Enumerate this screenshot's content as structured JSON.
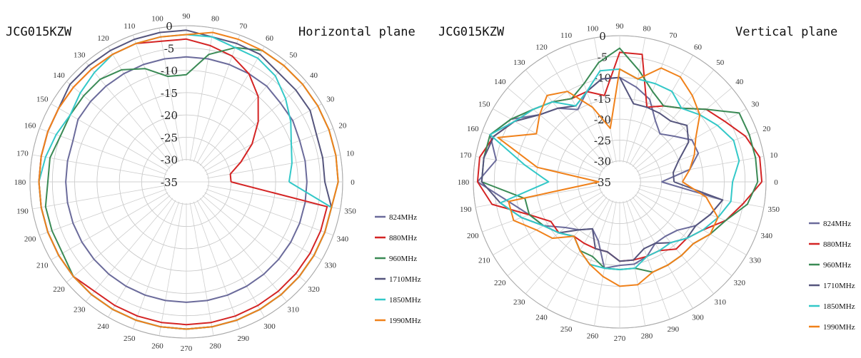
{
  "chart_data": [
    {
      "type": "line",
      "subtype": "polar",
      "model_label": "JCG015KZW",
      "plane_label": "Horizontal plane",
      "radial_range": [
        -35,
        0
      ],
      "radial_ticks": [
        -35,
        -30,
        -25,
        -20,
        -15,
        -10,
        -5,
        0
      ],
      "angles": [
        0,
        10,
        20,
        30,
        40,
        50,
        60,
        70,
        80,
        90,
        100,
        110,
        120,
        130,
        140,
        150,
        160,
        170,
        180,
        190,
        200,
        210,
        220,
        230,
        240,
        250,
        260,
        270,
        280,
        290,
        300,
        310,
        320,
        330,
        340,
        350
      ],
      "angle_labels": [
        "0",
        "10",
        "20",
        "30",
        "40",
        "50",
        "60",
        "70",
        "80",
        "90",
        "100",
        "110",
        "120",
        "130",
        "140",
        "150",
        "160",
        "170",
        "180",
        "190",
        "200",
        "210",
        "220",
        "230",
        "240",
        "250",
        "260",
        "270",
        "280",
        "290",
        "300",
        "310",
        "320",
        "330",
        "340",
        "350"
      ],
      "grid": true,
      "legend_position": "right",
      "series": [
        {
          "name": "824MHz",
          "color": "#6b6b9b",
          "values": [
            -8,
            -8,
            -8,
            -7.5,
            -7.5,
            -7,
            -7,
            -7,
            -7,
            -7,
            -7,
            -7,
            -7,
            -7,
            -7,
            -7,
            -8,
            -8,
            -8,
            -8,
            -8,
            -8,
            -8,
            -8,
            -8,
            -8,
            -8,
            -8,
            -8,
            -8,
            -8,
            -8,
            -8,
            -8,
            -8,
            -8
          ]
        },
        {
          "name": "880MHz",
          "color": "#d42424",
          "values": [
            -25,
            -25,
            -22,
            -18,
            -14,
            -10,
            -7,
            -5,
            -4,
            -3,
            -3,
            -2,
            -2,
            -2,
            -2,
            -2,
            -2,
            -2,
            -2,
            -2,
            -2,
            -2,
            -2,
            -3,
            -3,
            -3,
            -3,
            -3,
            -3,
            -3,
            -3,
            -3,
            -3,
            -3,
            -3,
            -3
          ]
        },
        {
          "name": "960MHz",
          "color": "#3a8a55",
          "values": [
            -1,
            -1,
            -1,
            -1,
            -1,
            -1,
            -1,
            -3,
            -6,
            -11,
            -11,
            -8,
            -6,
            -5,
            -5,
            -5,
            -5,
            -4,
            -4,
            -3,
            -3,
            -3,
            -2,
            -2,
            -2,
            -2,
            -2,
            -2,
            -2,
            -2,
            -2,
            -2,
            -2,
            -2,
            -2,
            -2
          ]
        },
        {
          "name": "1710MHz",
          "color": "#55557d",
          "values": [
            -4,
            -4,
            -4,
            -3,
            -3,
            -3,
            -2,
            -2,
            -2,
            -1,
            -1,
            -1,
            -1,
            -1,
            -1,
            -2,
            -2,
            -2,
            -2,
            -2,
            -2,
            -2,
            -2,
            -2,
            -2,
            -2,
            -2,
            -2,
            -2,
            -2,
            -2,
            -2,
            -2,
            -2,
            -2,
            -2
          ]
        },
        {
          "name": "1850MHz",
          "color": "#33c8c8",
          "values": [
            -12,
            -11,
            -10,
            -8,
            -6,
            -4,
            -3,
            -3,
            -2,
            -2,
            -2,
            -2,
            -2,
            -3,
            -4,
            -5,
            -4,
            -3,
            -2,
            -2,
            -2,
            -2,
            -2,
            -2,
            -2,
            -2,
            -2,
            -2,
            -2,
            -2,
            -2,
            -2,
            -2,
            -2,
            -2,
            -2
          ]
        },
        {
          "name": "1990MHz",
          "color": "#f0811a",
          "values": [
            -1,
            -1,
            -1,
            -1,
            -1,
            -1,
            -1,
            -1,
            -1,
            -2,
            -2,
            -2,
            -2,
            -2,
            -2,
            -2,
            -2,
            -2,
            -2,
            -2,
            -2,
            -2,
            -2,
            -2,
            -2,
            -2,
            -2,
            -2,
            -2,
            -2,
            -2,
            -2,
            -2,
            -2,
            -2,
            -2
          ]
        }
      ]
    },
    {
      "type": "line",
      "subtype": "polar",
      "model_label": "JCG015KZW",
      "plane_label": "Vertical plane",
      "radial_range": [
        -35,
        0
      ],
      "radial_ticks": [
        -35,
        -30,
        -25,
        -20,
        -15,
        -10,
        -5,
        0
      ],
      "angles": [
        0,
        10,
        20,
        30,
        40,
        50,
        60,
        70,
        80,
        90,
        100,
        110,
        120,
        130,
        140,
        150,
        160,
        170,
        180,
        190,
        200,
        210,
        220,
        230,
        240,
        250,
        260,
        270,
        280,
        290,
        300,
        310,
        320,
        330,
        340,
        350
      ],
      "angle_labels": [
        "0",
        "10",
        "20",
        "30",
        "40",
        "50",
        "60",
        "70",
        "80",
        "90",
        "100",
        "110",
        "120",
        "130",
        "140",
        "150",
        "160",
        "170",
        "180",
        "190",
        "200",
        "210",
        "220",
        "230",
        "240",
        "250",
        "260",
        "270",
        "280",
        "290",
        "300",
        "310",
        "320",
        "330",
        "340",
        "350"
      ],
      "grid": true,
      "legend_position": "right",
      "series": [
        {
          "name": "824MHz",
          "color": "#6b6b9b",
          "values": [
            -25,
            -18,
            -15,
            -15,
            -18,
            -20,
            -18,
            -14,
            -12,
            -10,
            -10,
            -12,
            -15,
            -12,
            -10,
            -5,
            -2,
            -5,
            -1,
            -8,
            -12,
            -14,
            -18,
            -20,
            -22,
            -20,
            -14,
            -15,
            -15,
            -16,
            -18,
            -18,
            -17,
            -14,
            -12,
            -10
          ]
        },
        {
          "name": "880MHz",
          "color": "#d42424",
          "values": [
            -1,
            -1,
            -3,
            -6,
            -8,
            -12,
            -14,
            -16,
            -4,
            -4,
            -14,
            -12,
            -12,
            -10,
            -8,
            -6,
            -3,
            -1,
            -1,
            -4,
            -12,
            -16,
            -16,
            -18,
            -18,
            -18,
            -18,
            -16,
            -16,
            -16,
            -16,
            -14,
            -14,
            -12,
            -8,
            -5
          ]
        },
        {
          "name": "960MHz",
          "color": "#3a8a55",
          "values": [
            -2,
            -2,
            -2,
            -2,
            -8,
            -12,
            -14,
            -12,
            -8,
            -3,
            -6,
            -10,
            -12,
            -10,
            -8,
            -5,
            -2,
            -2,
            -2,
            -12,
            -12,
            -14,
            -16,
            -18,
            -16,
            -16,
            -14,
            -14,
            -14,
            -12,
            -12,
            -12,
            -12,
            -10,
            -8,
            -4
          ]
        },
        {
          "name": "1710MHz",
          "color": "#55557d",
          "values": [
            -22,
            -22,
            -20,
            -16,
            -14,
            -16,
            -16,
            -16,
            -16,
            -10,
            -10,
            -12,
            -14,
            -12,
            -10,
            -6,
            -3,
            -2,
            -2,
            -6,
            -10,
            -14,
            -16,
            -20,
            -22,
            -18,
            -18,
            -16,
            -16,
            -18,
            -18,
            -16,
            -14,
            -14,
            -12,
            -10
          ]
        },
        {
          "name": "1850MHz",
          "color": "#33c8c8",
          "values": [
            -8,
            -6,
            -6,
            -8,
            -10,
            -12,
            -10,
            -10,
            -10,
            -8,
            -8,
            -12,
            -14,
            -10,
            -8,
            -6,
            -2,
            -12,
            -18,
            -6,
            -10,
            -14,
            -16,
            -18,
            -16,
            -14,
            -14,
            -14,
            -14,
            -16,
            -16,
            -16,
            -14,
            -12,
            -10,
            -8
          ]
        },
        {
          "name": "1990MHz",
          "color": "#f0811a",
          "values": [
            -20,
            -18,
            -16,
            -14,
            -10,
            -8,
            -6,
            -6,
            -10,
            -8,
            -22,
            -16,
            -10,
            -8,
            -10,
            -12,
            -4,
            -15,
            -30,
            -8,
            -8,
            -12,
            -14,
            -18,
            -16,
            -14,
            -12,
            -10,
            -10,
            -12,
            -12,
            -12,
            -12,
            -10,
            -10,
            -14
          ]
        }
      ]
    }
  ]
}
